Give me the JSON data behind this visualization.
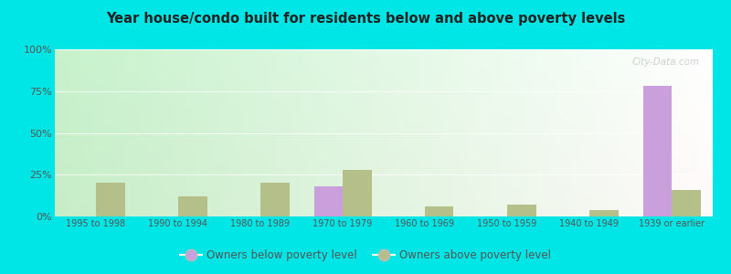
{
  "title": "Year house/condo built for residents below and above poverty levels",
  "categories": [
    "1995 to 1998",
    "1990 to 1994",
    "1980 to 1989",
    "1970 to 1979",
    "1960 to 1969",
    "1950 to 1959",
    "1940 to 1949",
    "1939 or earlier"
  ],
  "below_poverty": [
    0,
    0,
    0,
    18,
    0,
    0,
    0,
    78
  ],
  "above_poverty": [
    20,
    12,
    20,
    28,
    6,
    7,
    4,
    16
  ],
  "below_color": "#c9a0dc",
  "above_color": "#b5bf8a",
  "yticks": [
    0,
    25,
    50,
    75,
    100
  ],
  "ylim": [
    0,
    100
  ],
  "outer_bg": "#00e5e5",
  "legend_below_label": "Owners below poverty level",
  "legend_above_label": "Owners above poverty level",
  "bar_width": 0.35,
  "watermark": "City-Data.com"
}
